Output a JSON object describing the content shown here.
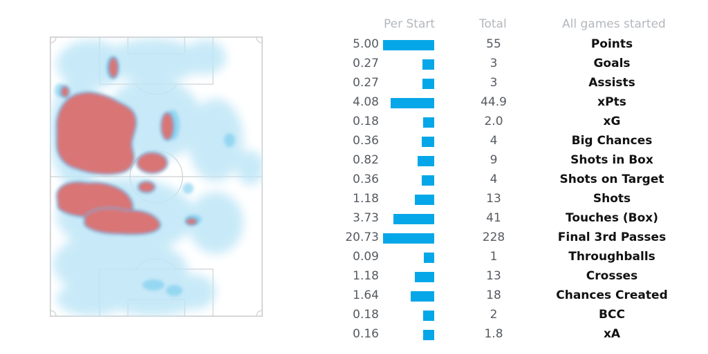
{
  "headers": {
    "per_start": "Per Start",
    "total": "Total",
    "label": "All games started"
  },
  "colors": {
    "bar": "#06a7e8",
    "heat_hot": "#d97474",
    "heat_cool": "#bfe6f7"
  },
  "rows": [
    {
      "per_start": "5.00",
      "per_start_value": 5.0,
      "total": "55",
      "label": "Points"
    },
    {
      "per_start": "0.27",
      "per_start_value": 0.27,
      "total": "3",
      "label": "Goals"
    },
    {
      "per_start": "0.27",
      "per_start_value": 0.27,
      "total": "3",
      "label": "Assists"
    },
    {
      "per_start": "4.08",
      "per_start_value": 4.08,
      "total": "44.9",
      "label": "xPts"
    },
    {
      "per_start": "0.18",
      "per_start_value": 0.18,
      "total": "2.0",
      "label": "xG"
    },
    {
      "per_start": "0.36",
      "per_start_value": 0.36,
      "total": "4",
      "label": "Big Chances"
    },
    {
      "per_start": "0.82",
      "per_start_value": 0.82,
      "total": "9",
      "label": "Shots in Box"
    },
    {
      "per_start": "0.36",
      "per_start_value": 0.36,
      "total": "4",
      "label": "Shots on Target"
    },
    {
      "per_start": "1.18",
      "per_start_value": 1.18,
      "total": "13",
      "label": "Shots"
    },
    {
      "per_start": "3.73",
      "per_start_value": 3.73,
      "total": "41",
      "label": "Touches (Box)"
    },
    {
      "per_start": "20.73",
      "per_start_value": 20.73,
      "total": "228",
      "label": "Final 3rd Passes"
    },
    {
      "per_start": "0.09",
      "per_start_value": 0.09,
      "total": "1",
      "label": "Throughballs"
    },
    {
      "per_start": "1.18",
      "per_start_value": 1.18,
      "total": "13",
      "label": "Crosses"
    },
    {
      "per_start": "1.64",
      "per_start_value": 1.64,
      "total": "18",
      "label": "Chances Created"
    },
    {
      "per_start": "0.18",
      "per_start_value": 0.18,
      "total": "2",
      "label": "BCC"
    },
    {
      "per_start": "0.16",
      "per_start_value": 0.16,
      "total": "1.8",
      "label": "xA"
    }
  ]
}
